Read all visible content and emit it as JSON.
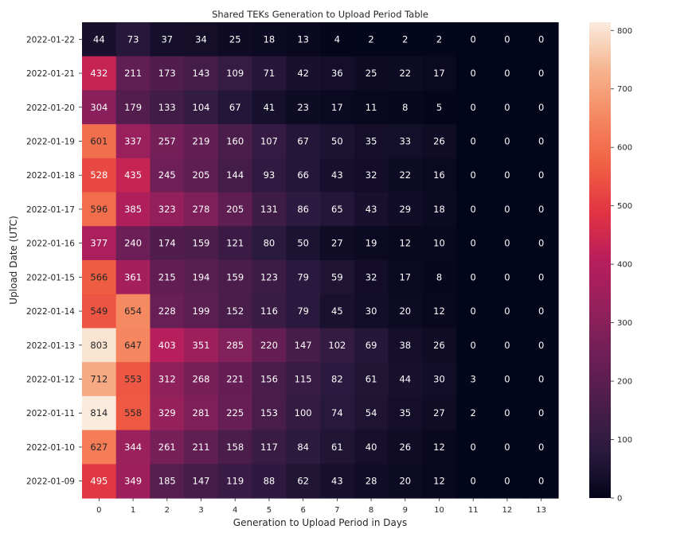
{
  "chart_data": {
    "type": "heatmap",
    "title": "Shared TEKs Generation to Upload Period Table",
    "xlabel": "Generation to Upload Period in Days",
    "ylabel": "Upload Date (UTC)",
    "x": [
      "0",
      "1",
      "2",
      "3",
      "4",
      "5",
      "6",
      "7",
      "8",
      "9",
      "10",
      "11",
      "12",
      "13"
    ],
    "y": [
      "2022-01-22",
      "2022-01-21",
      "2022-01-20",
      "2022-01-19",
      "2022-01-18",
      "2022-01-17",
      "2022-01-16",
      "2022-01-15",
      "2022-01-14",
      "2022-01-13",
      "2022-01-12",
      "2022-01-11",
      "2022-01-10",
      "2022-01-09"
    ],
    "values": [
      [
        44,
        73,
        37,
        34,
        25,
        18,
        13,
        4,
        2,
        2,
        2,
        0,
        0,
        0
      ],
      [
        432,
        211,
        173,
        143,
        109,
        71,
        42,
        36,
        25,
        22,
        17,
        0,
        0,
        0
      ],
      [
        304,
        179,
        133,
        104,
        67,
        41,
        23,
        17,
        11,
        8,
        5,
        0,
        0,
        0
      ],
      [
        601,
        337,
        257,
        219,
        160,
        107,
        67,
        50,
        35,
        33,
        26,
        0,
        0,
        0
      ],
      [
        528,
        435,
        245,
        205,
        144,
        93,
        66,
        43,
        32,
        22,
        16,
        0,
        0,
        0
      ],
      [
        596,
        385,
        323,
        278,
        205,
        131,
        86,
        65,
        43,
        29,
        18,
        0,
        0,
        0
      ],
      [
        377,
        240,
        174,
        159,
        121,
        80,
        50,
        27,
        19,
        12,
        10,
        0,
        0,
        0
      ],
      [
        566,
        361,
        215,
        194,
        159,
        123,
        79,
        59,
        32,
        17,
        8,
        0,
        0,
        0
      ],
      [
        549,
        654,
        228,
        199,
        152,
        116,
        79,
        45,
        30,
        20,
        12,
        0,
        0,
        0
      ],
      [
        803,
        647,
        403,
        351,
        285,
        220,
        147,
        102,
        69,
        38,
        26,
        0,
        0,
        0
      ],
      [
        712,
        553,
        312,
        268,
        221,
        156,
        115,
        82,
        61,
        44,
        30,
        3,
        0,
        0
      ],
      [
        814,
        558,
        329,
        281,
        225,
        153,
        100,
        74,
        54,
        35,
        27,
        2,
        0,
        0
      ],
      [
        627,
        344,
        261,
        211,
        158,
        117,
        84,
        61,
        40,
        26,
        12,
        0,
        0,
        0
      ],
      [
        495,
        349,
        185,
        147,
        119,
        88,
        62,
        43,
        28,
        20,
        12,
        0,
        0,
        0
      ]
    ],
    "colorbar": {
      "range": [
        0,
        814
      ],
      "ticks": [
        "0",
        "100",
        "200",
        "300",
        "400",
        "500",
        "600",
        "700",
        "800"
      ],
      "colormap": "rocket",
      "stops": [
        "#03051a",
        "#2b1a3f",
        "#4c1d4b",
        "#6e1f57",
        "#94205c",
        "#b81e5c",
        "#e13342",
        "#f06043",
        "#f58860",
        "#f6b48e",
        "#faebdd"
      ]
    },
    "grid": false
  }
}
